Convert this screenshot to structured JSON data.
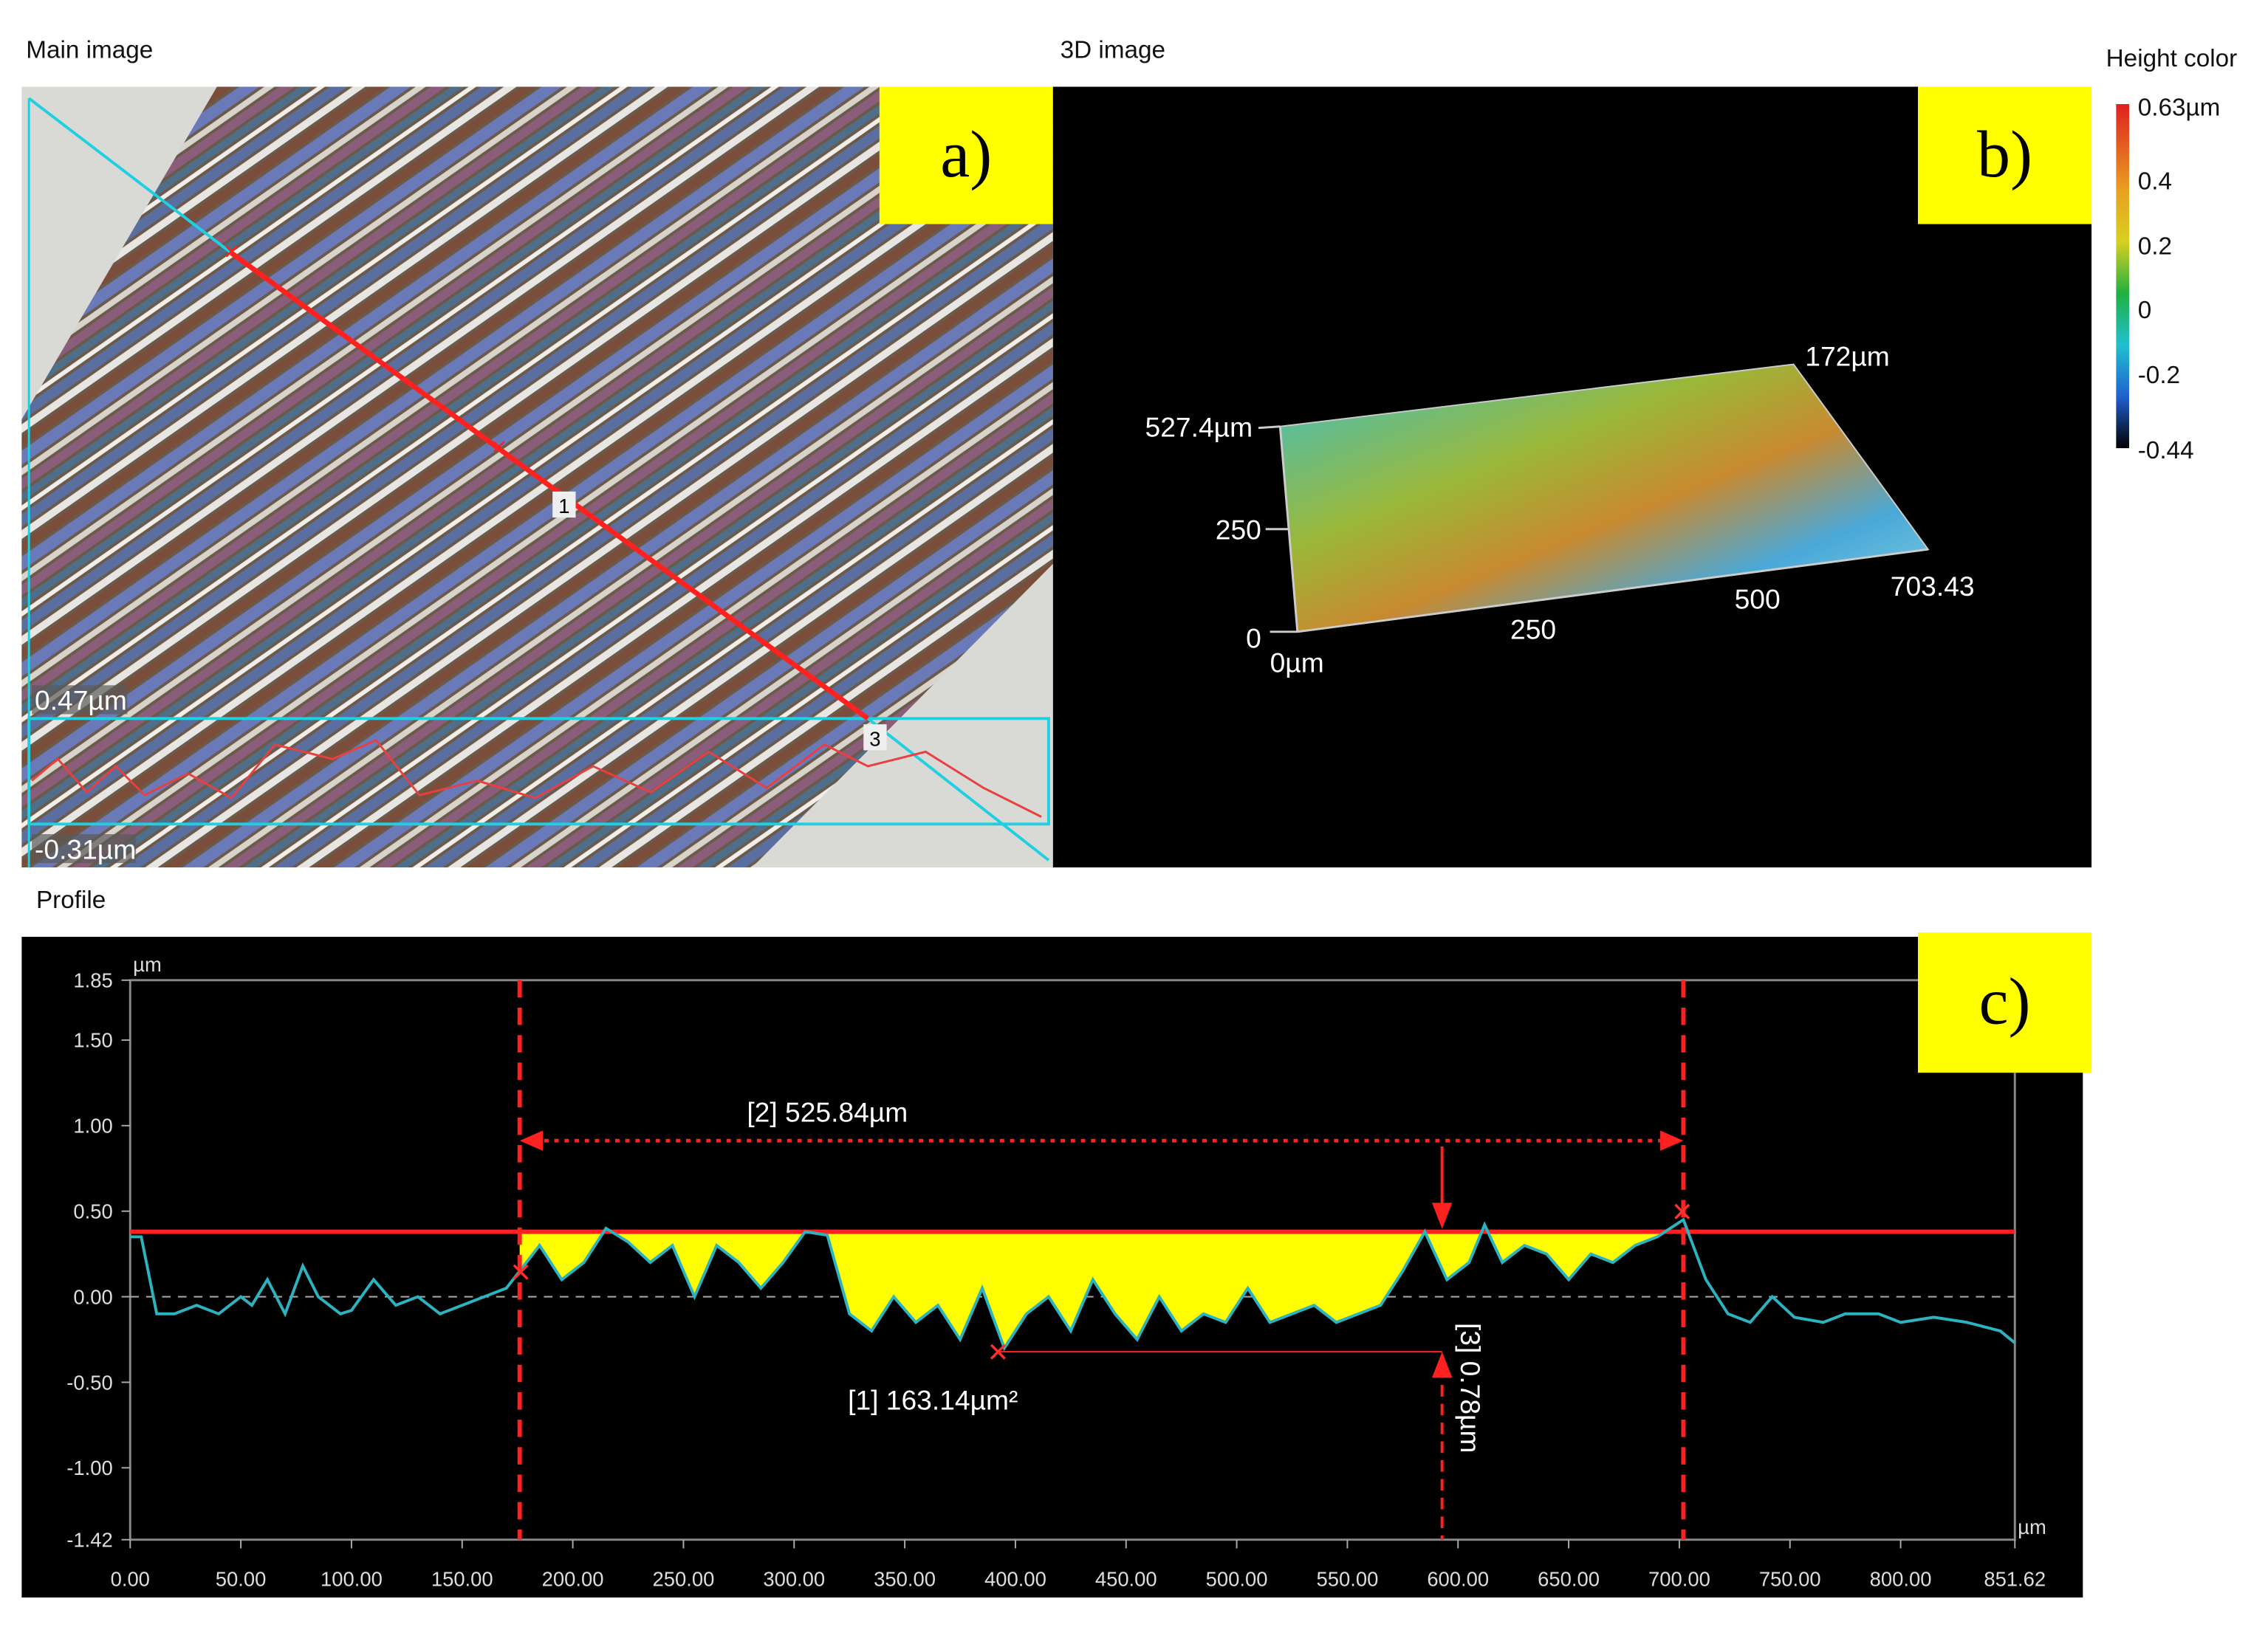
{
  "panels": {
    "main": {
      "title": "Main image",
      "tag": "a)",
      "scale_max": "0.47µm",
      "scale_min": "-0.31µm",
      "markers": [
        "1",
        "3"
      ]
    },
    "view3d": {
      "title": "3D image",
      "tag": "b)",
      "axis_labels": [
        "527.4µm",
        "250",
        "0",
        "0µm",
        "250",
        "500",
        "703.43",
        "172µm"
      ]
    },
    "colorbar": {
      "title": "Height color",
      "ticks": [
        "0.63µm",
        "0.4",
        "0.2",
        "0",
        "-0.2",
        "-0.44"
      ]
    }
  },
  "chart_data": {
    "type": "line",
    "title": "Profile",
    "tag": "c)",
    "y_unit": "µm",
    "x_unit": "µm",
    "xlim": [
      0,
      851.62
    ],
    "ylim": [
      -1.42,
      1.85
    ],
    "xticks": [
      {
        "value": 0,
        "label": "0.00"
      },
      {
        "value": 50,
        "label": "50.00"
      },
      {
        "value": 100,
        "label": "100.00"
      },
      {
        "value": 150,
        "label": "150.00"
      },
      {
        "value": 200,
        "label": "200.00"
      },
      {
        "value": 250,
        "label": "250.00"
      },
      {
        "value": 300,
        "label": "300.00"
      },
      {
        "value": 350,
        "label": "350.00"
      },
      {
        "value": 400,
        "label": "400.00"
      },
      {
        "value": 450,
        "label": "450.00"
      },
      {
        "value": 500,
        "label": "500.00"
      },
      {
        "value": 550,
        "label": "550.00"
      },
      {
        "value": 600,
        "label": "600.00"
      },
      {
        "value": 650,
        "label": "650.00"
      },
      {
        "value": 700,
        "label": "700.00"
      },
      {
        "value": 750,
        "label": "750.00"
      },
      {
        "value": 800,
        "label": "800.00"
      },
      851.62
    ],
    "yticks": [
      1.85,
      {
        "value": 1.5,
        "label": "1.50"
      },
      {
        "value": 1,
        "label": "1.00"
      },
      {
        "value": 0.5,
        "label": "0.50"
      },
      {
        "value": 0,
        "label": "0.00"
      },
      {
        "value": -0.5,
        "label": "-0.50"
      },
      {
        "value": -1,
        "label": "-1.00"
      },
      -1.42
    ],
    "x": [
      0,
      5,
      12,
      20,
      30,
      40,
      50,
      55,
      62,
      70,
      78,
      85,
      95,
      100,
      110,
      120,
      130,
      140,
      150,
      160,
      170,
      176,
      185,
      195,
      205,
      215,
      225,
      235,
      245,
      255,
      265,
      275,
      285,
      295,
      305,
      315,
      325,
      335,
      345,
      355,
      365,
      375,
      385,
      395,
      405,
      415,
      425,
      435,
      445,
      455,
      465,
      475,
      485,
      495,
      505,
      515,
      525,
      535,
      545,
      555,
      565,
      575,
      585,
      595,
      605,
      612,
      620,
      630,
      640,
      650,
      660,
      670,
      680,
      690,
      701.84,
      712,
      722,
      732,
      742,
      752,
      765,
      775,
      790,
      800,
      815,
      830,
      845,
      851.62
    ],
    "series": [
      {
        "color": "#2bb3c0",
        "values": [
          0.35,
          0.35,
          -0.1,
          -0.1,
          -0.05,
          -0.1,
          0.0,
          -0.05,
          0.1,
          -0.1,
          0.18,
          0.0,
          -0.1,
          -0.08,
          0.1,
          -0.05,
          0.0,
          -0.1,
          -0.05,
          0.0,
          0.05,
          0.15,
          0.3,
          0.1,
          0.2,
          0.4,
          0.32,
          0.2,
          0.3,
          0.0,
          0.3,
          0.2,
          0.05,
          0.2,
          0.38,
          0.36,
          -0.1,
          -0.2,
          0.0,
          -0.15,
          -0.05,
          -0.25,
          0.05,
          -0.3,
          -0.1,
          0.0,
          -0.2,
          0.1,
          -0.1,
          -0.25,
          0.0,
          -0.2,
          -0.1,
          -0.15,
          0.05,
          -0.15,
          -0.1,
          -0.05,
          -0.15,
          -0.1,
          -0.05,
          0.15,
          0.38,
          0.1,
          0.2,
          0.42,
          0.2,
          0.3,
          0.25,
          0.1,
          0.25,
          0.2,
          0.3,
          0.35,
          0.45,
          0.1,
          -0.1,
          -0.15,
          0.0,
          -0.12,
          -0.15,
          -0.1,
          -0.1,
          -0.15,
          -0.12,
          -0.15,
          -0.2,
          -0.27
        ]
      }
    ],
    "cursors": [
      176,
      701.84
    ],
    "level": 0.38,
    "annotations": [
      "[2] 525.84µm",
      "[1] 163.14µm²",
      "[3] 0.78µm"
    ]
  }
}
